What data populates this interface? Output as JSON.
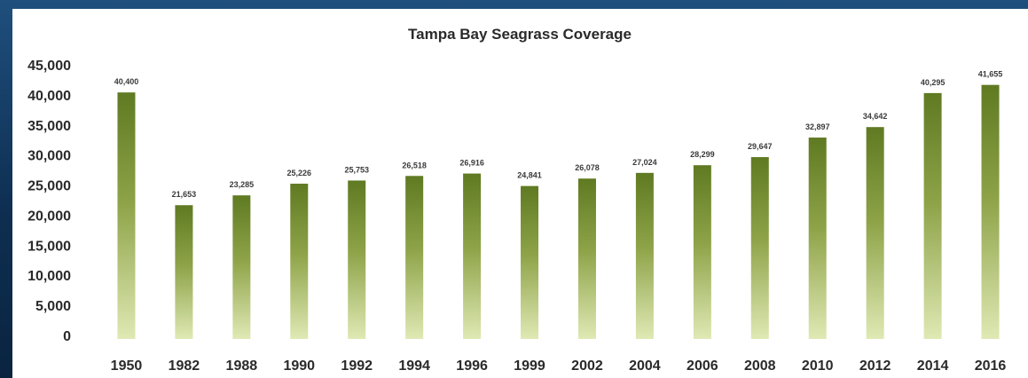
{
  "colors": {
    "backdrop": "#123a62",
    "panel": "#ffffff",
    "bar_top": "#5f7a22",
    "bar_bottom": "#dfe9b4",
    "text": "#2a2a2a"
  },
  "chart_data": {
    "type": "bar",
    "title": "Tampa Bay Seagrass Coverage",
    "xlabel": "",
    "ylabel": "",
    "ylim": [
      0,
      45000
    ],
    "grid": false,
    "legend": "none",
    "y_ticks": [
      "0",
      "5,000",
      "10,000",
      "15,000",
      "20,000",
      "25,000",
      "30,000",
      "35,000",
      "40,000",
      "45,000"
    ],
    "categories": [
      "1950",
      "1982",
      "1988",
      "1990",
      "1992",
      "1994",
      "1996",
      "1999",
      "2002",
      "2004",
      "2006",
      "2008",
      "2010",
      "2012",
      "2014",
      "2016"
    ],
    "values": [
      40400,
      21653,
      23285,
      25226,
      25753,
      26518,
      26916,
      24841,
      26078,
      27024,
      28299,
      29647,
      32897,
      34642,
      40295,
      41655
    ],
    "data_labels": [
      "40,400",
      "21,653",
      "23,285",
      "25,226",
      "25,753",
      "26,518",
      "26,916",
      "24,841",
      "26,078",
      "27,024",
      "28,299",
      "29,647",
      "32,897",
      "34,642",
      "40,295",
      "41,655"
    ]
  }
}
